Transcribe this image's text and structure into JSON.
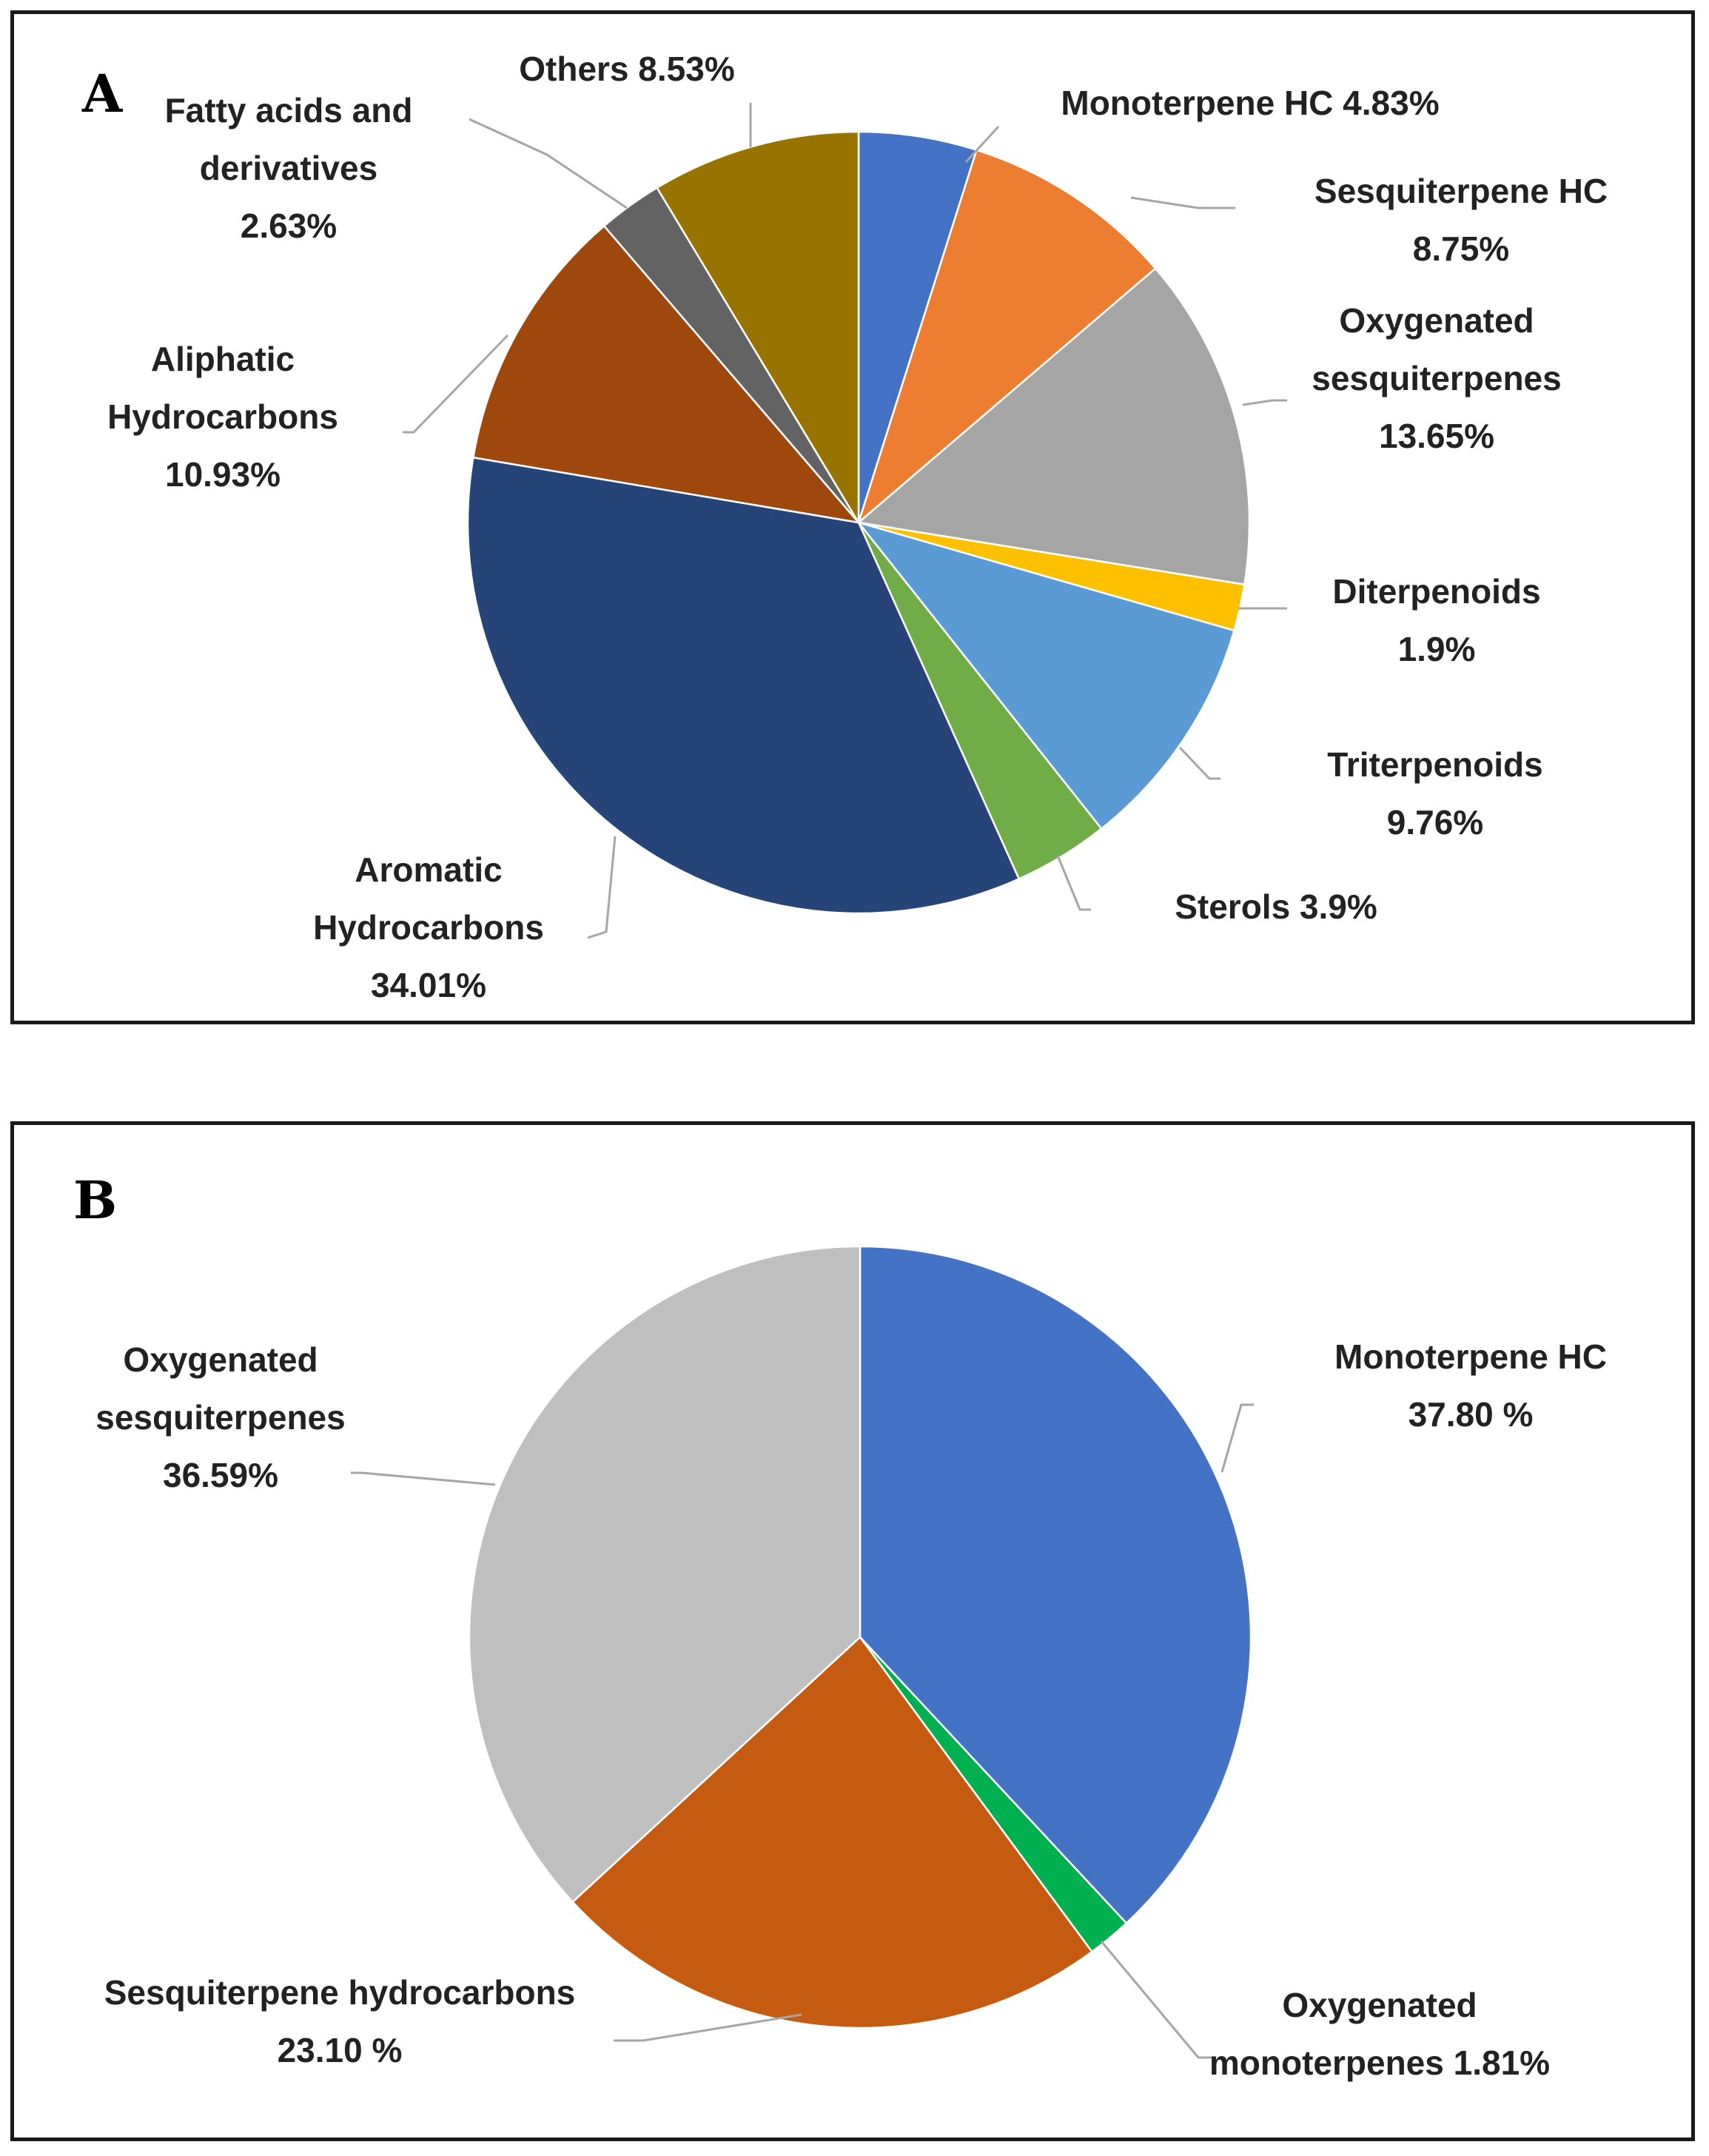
{
  "chart_data": [
    {
      "type": "pie",
      "panel": "A",
      "start_angle_deg": 0,
      "direction": "clockwise",
      "slices": [
        {
          "name": "Monoterpene HC",
          "value": 4.83,
          "label": [
            "Monoterpene HC 4.83%"
          ],
          "color": "#4472C4"
        },
        {
          "name": "Sesquiterpene HC",
          "value": 8.75,
          "label": [
            "Sesquiterpene HC",
            "8.75%"
          ],
          "color": "#ED7D31"
        },
        {
          "name": "Oxygenated sesquiterpenes",
          "value": 13.65,
          "label": [
            "Oxygenated",
            "sesquiterpenes",
            "13.65%"
          ],
          "color": "#A5A5A5"
        },
        {
          "name": "Diterpenoids",
          "value": 1.9,
          "label": [
            "Diterpenoids",
            "1.9%"
          ],
          "color": "#FFC000"
        },
        {
          "name": "Triterpenoids",
          "value": 9.76,
          "label": [
            "Triterpenoids",
            "9.76%"
          ],
          "color": "#5B9BD5"
        },
        {
          "name": "Sterols",
          "value": 3.9,
          "label": [
            "Sterols 3.9%"
          ],
          "color": "#70AD47"
        },
        {
          "name": "Aromatic Hydrocarbons",
          "value": 34.01,
          "label": [
            "Aromatic",
            "Hydrocarbons",
            "34.01%"
          ],
          "color": "#264478"
        },
        {
          "name": "Aliphatic Hydrocarbons",
          "value": 10.93,
          "label": [
            "Aliphatic",
            "Hydrocarbons",
            "10.93%"
          ],
          "color": "#9E480E"
        },
        {
          "name": "Fatty acids and derivatives",
          "value": 2.63,
          "label": [
            "Fatty acids and",
            "derivatives",
            "2.63%"
          ],
          "color": "#636363"
        },
        {
          "name": "Others",
          "value": 8.53,
          "label": [
            "Others 8.53%"
          ],
          "color": "#997300"
        }
      ]
    },
    {
      "type": "pie",
      "panel": "B",
      "start_angle_deg": 0,
      "direction": "clockwise",
      "slices": [
        {
          "name": "Monoterpene HC",
          "value": 37.8,
          "label": [
            "Monoterpene HC",
            "37.80 %"
          ],
          "color": "#4472C4"
        },
        {
          "name": "Oxygenated monoterpenes",
          "value": 1.81,
          "label": [
            "Oxygenated",
            "monoterpenes 1.81%"
          ],
          "color": "#00B050"
        },
        {
          "name": "Sesquiterpene hydrocarbons",
          "value": 23.1,
          "label": [
            "Sesquiterpene hydrocarbons",
            "23.10 %"
          ],
          "color": "#C55A11"
        },
        {
          "name": "Oxygenated sesquiterpenes",
          "value": 36.59,
          "label": [
            "Oxygenated",
            "sesquiterpenes",
            "36.59%"
          ],
          "color": "#BFBFBF"
        }
      ]
    }
  ],
  "panels": {
    "a": {
      "letter": "A"
    },
    "b": {
      "letter": "B"
    }
  }
}
